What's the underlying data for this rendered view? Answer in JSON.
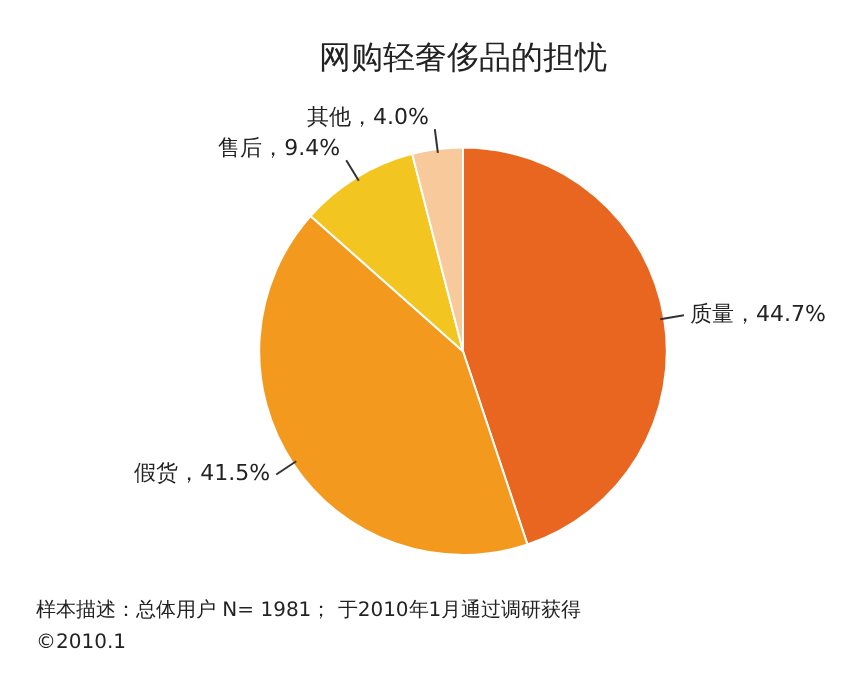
{
  "chart_data": {
    "type": "pie",
    "title": "网购轻奢侈品的担忧",
    "categories": [
      "质量",
      "假货",
      "售后",
      "其他"
    ],
    "values": [
      44.7,
      41.5,
      9.4,
      4.0
    ],
    "value_labels": [
      "44.7%",
      "41.5%",
      "9.4%",
      "4.0%"
    ],
    "colors": [
      "#e8661f",
      "#f39a1e",
      "#f2c520",
      "#f7c99b"
    ],
    "legend": false,
    "annotations": [
      "样本描述：总体用户 N= 1981； 于2010年1月通过调研获得",
      "©2010.1"
    ]
  }
}
